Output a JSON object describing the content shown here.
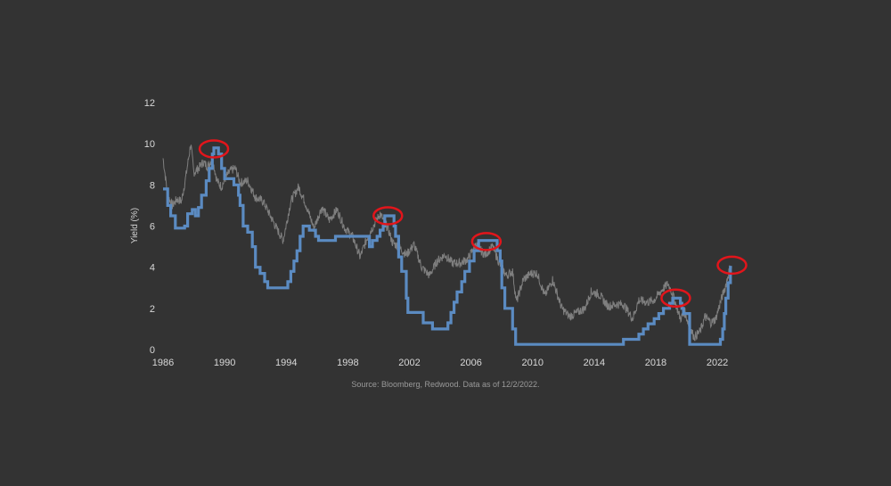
{
  "chart_data": {
    "type": "line",
    "ylabel": "Yield (%)",
    "xlim": [
      1986,
      2023.5
    ],
    "ylim": [
      0,
      12
    ],
    "x_ticks": [
      1986,
      1990,
      1994,
      1998,
      2002,
      2006,
      2010,
      2014,
      2018,
      2022
    ],
    "y_ticks": [
      0,
      2,
      4,
      6,
      8,
      10,
      12
    ],
    "grid": false,
    "source_note": "Source: Bloomberg, Redwood. Data as of 12/2/2022.",
    "colors": {
      "policy_rate": "#5b8bc2",
      "treasury_yield": "#7f7f7f",
      "highlight": "#e2151b",
      "text": "#d8d8d8"
    },
    "series": [
      {
        "color": "#5b8bc2",
        "style": "step",
        "points": [
          [
            1986.0,
            7.8
          ],
          [
            1986.3,
            7.0
          ],
          [
            1986.5,
            6.5
          ],
          [
            1986.8,
            5.9
          ],
          [
            1987.4,
            6.0
          ],
          [
            1987.6,
            6.6
          ],
          [
            1987.9,
            6.8
          ],
          [
            1988.1,
            6.5
          ],
          [
            1988.3,
            6.9
          ],
          [
            1988.5,
            7.5
          ],
          [
            1988.8,
            8.2
          ],
          [
            1989.0,
            8.8
          ],
          [
            1989.2,
            9.5
          ],
          [
            1989.3,
            9.8
          ],
          [
            1989.6,
            9.5
          ],
          [
            1989.8,
            8.8
          ],
          [
            1990.0,
            8.3
          ],
          [
            1990.6,
            8.0
          ],
          [
            1990.9,
            7.5
          ],
          [
            1991.0,
            7.0
          ],
          [
            1991.2,
            6.0
          ],
          [
            1991.5,
            5.7
          ],
          [
            1991.8,
            5.0
          ],
          [
            1992.0,
            4.0
          ],
          [
            1992.3,
            3.7
          ],
          [
            1992.6,
            3.3
          ],
          [
            1992.8,
            3.0
          ],
          [
            1994.1,
            3.3
          ],
          [
            1994.3,
            3.8
          ],
          [
            1994.5,
            4.3
          ],
          [
            1994.7,
            4.8
          ],
          [
            1994.9,
            5.5
          ],
          [
            1995.1,
            6.0
          ],
          [
            1995.5,
            5.8
          ],
          [
            1995.9,
            5.5
          ],
          [
            1996.1,
            5.3
          ],
          [
            1997.2,
            5.5
          ],
          [
            1999.4,
            5.0
          ],
          [
            1999.6,
            5.3
          ],
          [
            1999.9,
            5.5
          ],
          [
            2000.1,
            5.8
          ],
          [
            2000.3,
            6.0
          ],
          [
            2000.4,
            6.5
          ],
          [
            2001.0,
            6.0
          ],
          [
            2001.1,
            5.5
          ],
          [
            2001.3,
            4.5
          ],
          [
            2001.5,
            3.8
          ],
          [
            2001.8,
            2.5
          ],
          [
            2001.9,
            1.8
          ],
          [
            2002.9,
            1.3
          ],
          [
            2003.5,
            1.0
          ],
          [
            2004.5,
            1.3
          ],
          [
            2004.7,
            1.8
          ],
          [
            2004.9,
            2.3
          ],
          [
            2005.1,
            2.8
          ],
          [
            2005.4,
            3.3
          ],
          [
            2005.6,
            3.8
          ],
          [
            2005.9,
            4.3
          ],
          [
            2006.2,
            4.8
          ],
          [
            2006.5,
            5.3
          ],
          [
            2007.7,
            4.8
          ],
          [
            2007.9,
            4.3
          ],
          [
            2008.0,
            3.0
          ],
          [
            2008.2,
            2.0
          ],
          [
            2008.7,
            1.0
          ],
          [
            2008.9,
            0.25
          ],
          [
            2015.9,
            0.5
          ],
          [
            2016.9,
            0.75
          ],
          [
            2017.2,
            1.0
          ],
          [
            2017.5,
            1.25
          ],
          [
            2017.9,
            1.5
          ],
          [
            2018.2,
            1.75
          ],
          [
            2018.5,
            2.0
          ],
          [
            2018.9,
            2.25
          ],
          [
            2019.1,
            2.5
          ],
          [
            2019.6,
            2.25
          ],
          [
            2019.7,
            2.0
          ],
          [
            2019.8,
            1.75
          ],
          [
            2020.2,
            0.25
          ],
          [
            2022.2,
            0.5
          ],
          [
            2022.35,
            1.0
          ],
          [
            2022.45,
            1.75
          ],
          [
            2022.55,
            2.5
          ],
          [
            2022.7,
            3.25
          ],
          [
            2022.85,
            4.0
          ],
          [
            2022.95,
            4.0
          ]
        ]
      },
      {
        "color": "#7f7f7f",
        "style": "noisy",
        "points": [
          [
            1986.0,
            9.3
          ],
          [
            1986.3,
            7.5
          ],
          [
            1986.6,
            7.0
          ],
          [
            1986.9,
            7.3
          ],
          [
            1987.2,
            7.2
          ],
          [
            1987.5,
            8.5
          ],
          [
            1987.8,
            10.0
          ],
          [
            1988.0,
            8.6
          ],
          [
            1988.3,
            8.8
          ],
          [
            1988.6,
            9.1
          ],
          [
            1988.9,
            8.9
          ],
          [
            1989.2,
            9.3
          ],
          [
            1989.5,
            8.2
          ],
          [
            1989.8,
            7.9
          ],
          [
            1990.1,
            8.4
          ],
          [
            1990.4,
            8.7
          ],
          [
            1990.7,
            8.8
          ],
          [
            1991.0,
            8.1
          ],
          [
            1991.5,
            8.2
          ],
          [
            1992.0,
            7.4
          ],
          [
            1992.5,
            7.2
          ],
          [
            1992.9,
            6.6
          ],
          [
            1993.3,
            6.0
          ],
          [
            1993.8,
            5.3
          ],
          [
            1994.3,
            7.2
          ],
          [
            1994.8,
            7.9
          ],
          [
            1995.2,
            7.2
          ],
          [
            1995.8,
            5.9
          ],
          [
            1996.3,
            6.9
          ],
          [
            1996.8,
            6.3
          ],
          [
            1997.3,
            6.8
          ],
          [
            1997.8,
            5.9
          ],
          [
            1998.3,
            5.5
          ],
          [
            1998.8,
            4.5
          ],
          [
            1999.3,
            5.5
          ],
          [
            1999.8,
            6.2
          ],
          [
            2000.1,
            6.6
          ],
          [
            2000.6,
            5.9
          ],
          [
            2000.9,
            5.2
          ],
          [
            2001.3,
            5.0
          ],
          [
            2001.8,
            4.6
          ],
          [
            2002.3,
            5.1
          ],
          [
            2002.8,
            4.0
          ],
          [
            2003.3,
            3.6
          ],
          [
            2003.8,
            4.3
          ],
          [
            2004.3,
            4.6
          ],
          [
            2004.8,
            4.2
          ],
          [
            2005.3,
            4.2
          ],
          [
            2005.8,
            4.4
          ],
          [
            2006.3,
            5.1
          ],
          [
            2006.9,
            4.6
          ],
          [
            2007.4,
            5.0
          ],
          [
            2007.9,
            4.1
          ],
          [
            2008.3,
            3.6
          ],
          [
            2008.7,
            3.8
          ],
          [
            2008.95,
            2.3
          ],
          [
            2009.4,
            3.4
          ],
          [
            2009.9,
            3.7
          ],
          [
            2010.3,
            3.7
          ],
          [
            2010.8,
            2.6
          ],
          [
            2011.3,
            3.4
          ],
          [
            2011.9,
            2.0
          ],
          [
            2012.4,
            1.6
          ],
          [
            2012.9,
            1.8
          ],
          [
            2013.4,
            2.0
          ],
          [
            2013.8,
            2.8
          ],
          [
            2014.3,
            2.7
          ],
          [
            2014.9,
            2.1
          ],
          [
            2015.4,
            2.2
          ],
          [
            2015.9,
            2.2
          ],
          [
            2016.5,
            1.5
          ],
          [
            2016.9,
            2.4
          ],
          [
            2017.4,
            2.3
          ],
          [
            2017.9,
            2.4
          ],
          [
            2018.4,
            2.9
          ],
          [
            2018.8,
            3.2
          ],
          [
            2019.1,
            2.7
          ],
          [
            2019.6,
            1.5
          ],
          [
            2019.9,
            1.8
          ],
          [
            2020.2,
            1.1
          ],
          [
            2020.5,
            0.6
          ],
          [
            2020.9,
            0.9
          ],
          [
            2021.2,
            1.6
          ],
          [
            2021.6,
            1.3
          ],
          [
            2021.9,
            1.5
          ],
          [
            2022.2,
            2.3
          ],
          [
            2022.5,
            3.0
          ],
          [
            2022.8,
            3.9
          ],
          [
            2022.92,
            3.6
          ]
        ]
      }
    ],
    "highlights": [
      {
        "x": 1989.3,
        "y": 9.75
      },
      {
        "x": 2000.6,
        "y": 6.5
      },
      {
        "x": 2007.0,
        "y": 5.25
      },
      {
        "x": 2019.3,
        "y": 2.5
      },
      {
        "x": 2022.95,
        "y": 4.1
      }
    ]
  }
}
